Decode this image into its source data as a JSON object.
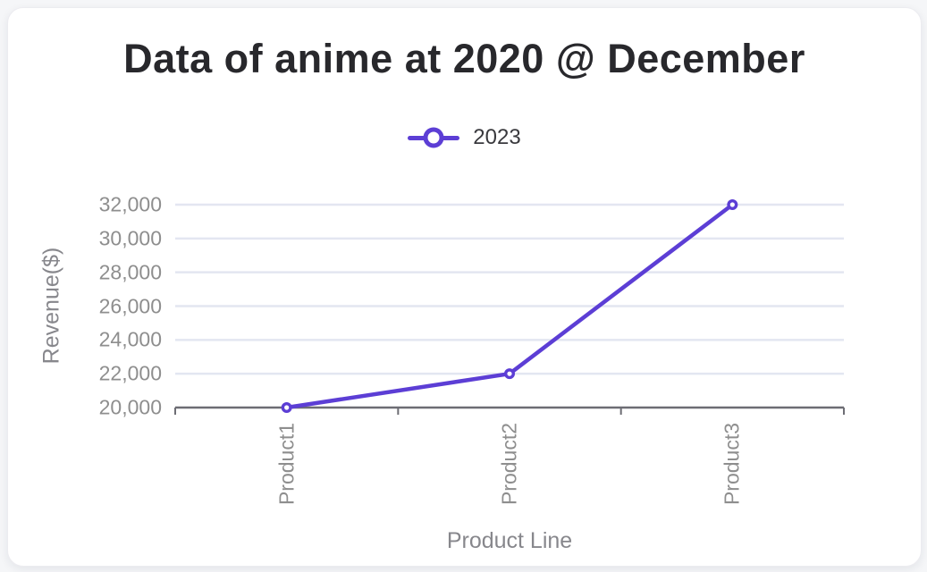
{
  "page": {
    "background_color": "#f5f6f8",
    "card_background_color": "#ffffff"
  },
  "chart_data": {
    "type": "line",
    "title": "Data of anime at 2020 @ December",
    "categories": [
      "Product1",
      "Product2",
      "Product3"
    ],
    "series": [
      {
        "name": "2023",
        "color": "#5c3ed5",
        "marker": "open-circle",
        "values": [
          20000,
          22000,
          32000
        ]
      }
    ],
    "xlabel": "Product Line",
    "ylabel": "Revenue($)",
    "ylim": [
      20000,
      32000
    ],
    "ytick_step": 2000,
    "ytick_labels": [
      "20,000",
      "22,000",
      "24,000",
      "26,000",
      "28,000",
      "30,000",
      "32,000"
    ],
    "grid": true,
    "legend_position": "top",
    "colors": {
      "grid_line": "#e3e6f1",
      "axis_line": "#6d6d74",
      "tick_label": "#8e8e8e",
      "axis_title": "#87878c",
      "title": "#28282c",
      "legend_text": "#3a3a3e"
    }
  }
}
